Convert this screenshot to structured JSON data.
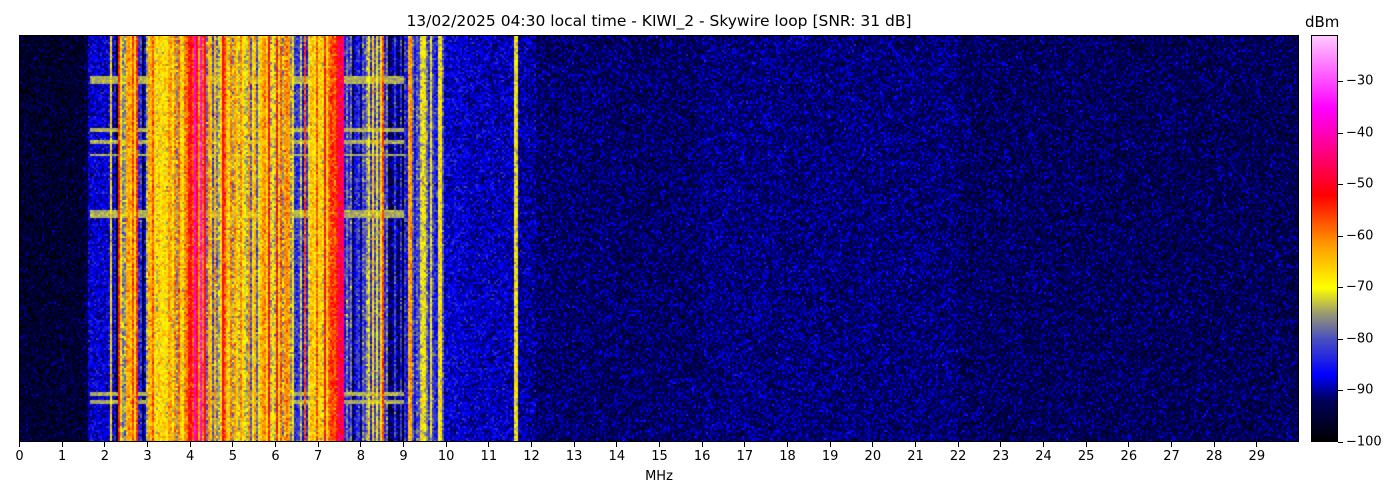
{
  "chart_data": {
    "type": "heatmap",
    "title": "13/02/2025 04:30 local time - KIWI_2 - Skywire loop [SNR: 31 dB]",
    "xlabel": "MHz",
    "ylabel": "",
    "xlim": [
      0,
      30
    ],
    "x_ticks": [
      0,
      1,
      2,
      3,
      4,
      5,
      6,
      7,
      8,
      9,
      10,
      11,
      12,
      13,
      14,
      15,
      16,
      17,
      18,
      19,
      20,
      21,
      22,
      23,
      24,
      25,
      26,
      27,
      28,
      29
    ],
    "colorbar": {
      "label": "dBm",
      "range": [
        -100,
        -21
      ],
      "ticks": [
        -30,
        -40,
        -50,
        -60,
        -70,
        -80,
        -90,
        -100
      ],
      "colormap": [
        {
          "dbm": -100,
          "color": "#000000"
        },
        {
          "dbm": -92,
          "color": "#00005a"
        },
        {
          "dbm": -87,
          "color": "#0000ff"
        },
        {
          "dbm": -80,
          "color": "#4a50c0"
        },
        {
          "dbm": -75,
          "color": "#9a9a70"
        },
        {
          "dbm": -70,
          "color": "#ffff00"
        },
        {
          "dbm": -62,
          "color": "#ffa000"
        },
        {
          "dbm": -52,
          "color": "#ff0000"
        },
        {
          "dbm": -42,
          "color": "#ff0099"
        },
        {
          "dbm": -35,
          "color": "#ff00ff"
        },
        {
          "dbm": -21,
          "color": "#ffc8ff"
        }
      ]
    },
    "band_levels_dbm": [
      [
        0,
        1.55,
        -94
      ],
      [
        1.55,
        2.3,
        -88
      ],
      [
        2.3,
        2.5,
        -74
      ],
      [
        2.5,
        2.75,
        -60
      ],
      [
        2.75,
        3.0,
        -84
      ],
      [
        3.0,
        3.9,
        -67
      ],
      [
        3.9,
        4.35,
        -54
      ],
      [
        4.35,
        5.6,
        -71
      ],
      [
        5.6,
        6.3,
        -64
      ],
      [
        6.3,
        6.8,
        -78
      ],
      [
        6.8,
        7.6,
        -63
      ],
      [
        7.6,
        8.1,
        -86
      ],
      [
        8.1,
        8.6,
        -76
      ],
      [
        8.6,
        9.0,
        -89
      ],
      [
        9.0,
        9.9,
        -79
      ],
      [
        9.9,
        10.5,
        -88
      ],
      [
        10.5,
        11.55,
        -89
      ],
      [
        11.55,
        11.65,
        -70
      ],
      [
        11.65,
        12.1,
        -90
      ],
      [
        12.1,
        30,
        -92
      ]
    ]
  }
}
